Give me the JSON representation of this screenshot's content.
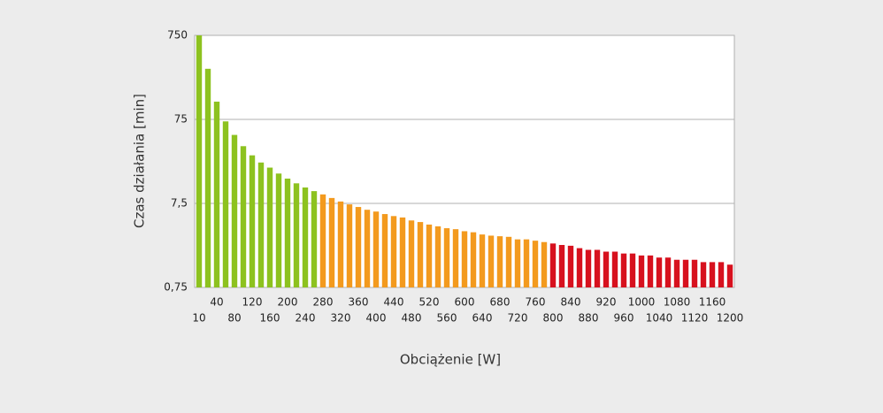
{
  "chart_data": {
    "type": "bar",
    "x_label": "Obciążenie [W]",
    "y_label": "Czas działania [min]",
    "categories": [
      "10",
      null,
      "40",
      null,
      "80",
      null,
      "120",
      null,
      "160",
      null,
      "200",
      null,
      "240",
      null,
      "280",
      null,
      "320",
      null,
      "360",
      null,
      "400",
      null,
      "440",
      null,
      "480",
      null,
      "520",
      null,
      "560",
      null,
      "600",
      null,
      "640",
      null,
      "680",
      null,
      "720",
      null,
      "760",
      null,
      "800",
      null,
      "840",
      null,
      "880",
      null,
      "920",
      null,
      "960",
      null,
      "1000",
      null,
      "1040",
      null,
      "1080",
      null,
      "1120",
      null,
      "1160",
      null,
      "1200"
    ],
    "values": [
      750,
      300,
      122,
      71,
      49,
      36,
      28,
      23,
      20,
      17,
      14.8,
      13,
      11.6,
      10.5,
      9.6,
      8.7,
      7.9,
      7.3,
      6.8,
      6.3,
      6.0,
      5.6,
      5.3,
      5.1,
      4.7,
      4.5,
      4.2,
      4.0,
      3.8,
      3.7,
      3.5,
      3.4,
      3.2,
      3.1,
      3.05,
      3.0,
      2.8,
      2.8,
      2.7,
      2.6,
      2.5,
      2.4,
      2.35,
      2.2,
      2.1,
      2.1,
      2.0,
      2.0,
      1.9,
      1.9,
      1.8,
      1.8,
      1.7,
      1.7,
      1.6,
      1.6,
      1.6,
      1.5,
      1.5,
      1.5,
      1.4
    ],
    "colors": [
      "#8dc21f",
      "#8dc21f",
      "#8dc21f",
      "#8dc21f",
      "#8dc21f",
      "#8dc21f",
      "#8dc21f",
      "#8dc21f",
      "#8dc21f",
      "#8dc21f",
      "#8dc21f",
      "#8dc21f",
      "#8dc21f",
      "#8dc21f",
      "#f39a1e",
      "#f39a1e",
      "#f39a1e",
      "#f39a1e",
      "#f39a1e",
      "#f39a1e",
      "#f39a1e",
      "#f39a1e",
      "#f39a1e",
      "#f39a1e",
      "#f39a1e",
      "#f39a1e",
      "#f39a1e",
      "#f39a1e",
      "#f39a1e",
      "#f39a1e",
      "#f39a1e",
      "#f39a1e",
      "#f39a1e",
      "#f39a1e",
      "#f39a1e",
      "#f39a1e",
      "#f39a1e",
      "#f39a1e",
      "#f39a1e",
      "#f39a1e",
      "#d7111e",
      "#d7111e",
      "#d7111e",
      "#d7111e",
      "#d7111e",
      "#d7111e",
      "#d7111e",
      "#d7111e",
      "#d7111e",
      "#d7111e",
      "#d7111e",
      "#d7111e",
      "#d7111e",
      "#d7111e",
      "#d7111e",
      "#d7111e",
      "#d7111e",
      "#d7111e",
      "#d7111e",
      "#d7111e",
      "#d7111e"
    ],
    "log_y": true,
    "ylim": [
      0.75,
      750
    ],
    "yticks": [
      {
        "value": 0.75,
        "label": "0,75"
      },
      {
        "value": 7.5,
        "label": "7,5"
      },
      75,
      750
    ],
    "grid": true
  }
}
